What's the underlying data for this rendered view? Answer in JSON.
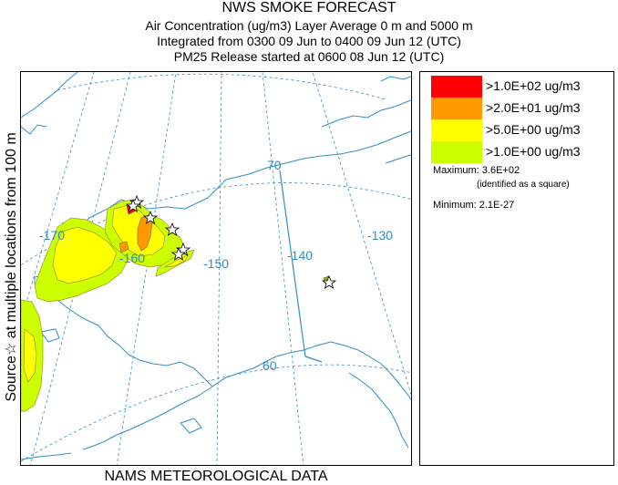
{
  "header": {
    "title": "NWS SMOKE FORECAST",
    "line2": "Air Concentration (ug/m3) Layer Average    0 m and  5000 m",
    "line3": "Integrated from 0300 09 Jun to 0400 09 Jun 12 (UTC)",
    "line4": "PM25 Release started at 0600 08 Jun 12 (UTC)"
  },
  "side_label": "Source☆ at multiple locations from  100 m",
  "footer": "NAMS METEOROLOGICAL DATA",
  "map": {
    "grid_labels": {
      "lat_70": "70",
      "lat_60": "60",
      "lon_m170": "-170",
      "lon_m160": "-160",
      "lon_m150": "-150",
      "lon_m140": "-140",
      "lon_m130": "-130"
    },
    "colors": {
      "coast": "#2f8fc4",
      "grid": "#2f8fc4",
      "level1": "#ff0000",
      "level2": "#ff9900",
      "level3": "#ffff00",
      "level4": "#ccff00"
    },
    "source_marker": "star-icon"
  },
  "legend": {
    "levels": [
      {
        "label": ">1.0E+02 ug/m3",
        "color": "#ff0000"
      },
      {
        "label": ">2.0E+01 ug/m3",
        "color": "#ff9900"
      },
      {
        "label": ">5.0E+00 ug/m3",
        "color": "#ffff00"
      },
      {
        "label": ">1.0E+00 ug/m3",
        "color": "#ccff00"
      }
    ],
    "maximum_label": "Maximum: 3.6E+02",
    "maximum_note": "(identified as a square)",
    "minimum_label": "Minimum: 2.1E-27"
  }
}
